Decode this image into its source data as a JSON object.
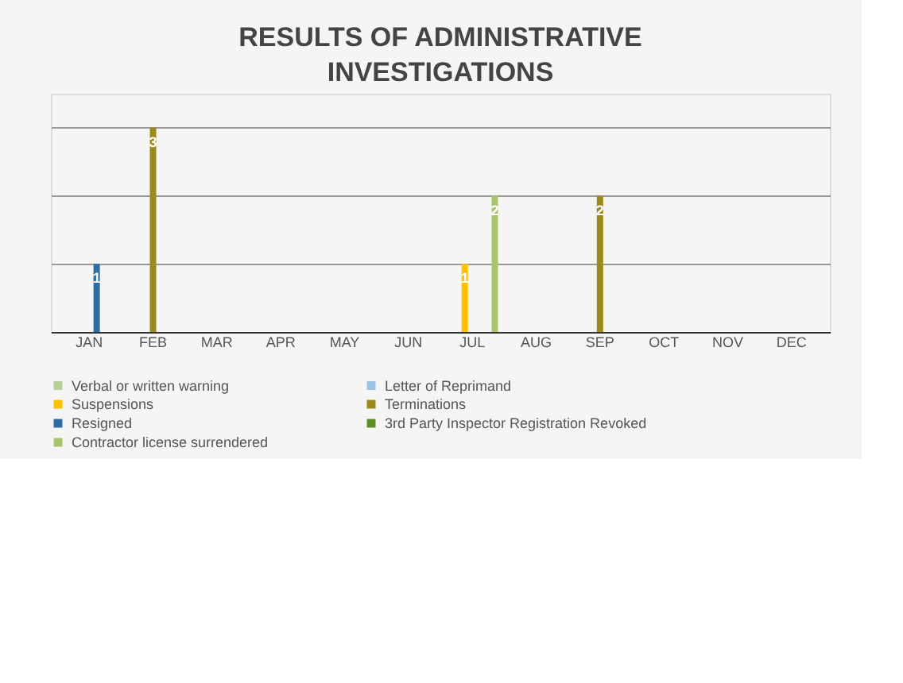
{
  "chart_data": {
    "type": "bar",
    "title": "RESULTS OF ADMINISTRATIVE INVESTIGATIONS",
    "categories": [
      "JAN",
      "FEB",
      "MAR",
      "APR",
      "MAY",
      "JUN",
      "JUL",
      "AUG",
      "SEP",
      "OCT",
      "NOV",
      "DEC"
    ],
    "series": [
      {
        "name": "Verbal or written warning",
        "color": "#b5cf9a",
        "values": [
          null,
          null,
          null,
          null,
          null,
          null,
          null,
          null,
          null,
          null,
          null,
          null
        ]
      },
      {
        "name": "Letter of Reprimand",
        "color": "#9dc3e6",
        "values": [
          null,
          null,
          null,
          null,
          null,
          null,
          null,
          null,
          null,
          null,
          null,
          null
        ]
      },
      {
        "name": "Suspensions",
        "color": "#ffc000",
        "values": [
          null,
          null,
          null,
          null,
          null,
          null,
          1,
          null,
          null,
          null,
          null,
          null
        ]
      },
      {
        "name": "Terminations",
        "color": "#9c8a1c",
        "values": [
          null,
          3,
          null,
          null,
          null,
          null,
          null,
          null,
          2,
          null,
          null,
          null
        ]
      },
      {
        "name": "Resigned",
        "color": "#2e6da4",
        "values": [
          1,
          null,
          null,
          null,
          null,
          null,
          null,
          null,
          null,
          null,
          null,
          null
        ]
      },
      {
        "name": "3rd Party Inspector Registration Revoked",
        "color": "#5f8f2a",
        "values": [
          null,
          null,
          null,
          null,
          null,
          null,
          null,
          null,
          null,
          null,
          null,
          null
        ]
      },
      {
        "name": "Contractor license surrendered",
        "color": "#a9c46c",
        "values": [
          null,
          null,
          null,
          null,
          null,
          null,
          2,
          null,
          null,
          null,
          null,
          null
        ]
      }
    ],
    "ylim": [
      0,
      3.5
    ],
    "yticks": [
      {
        "value": 0,
        "label": null
      },
      {
        "value": 1,
        "label": null
      },
      {
        "value": 2,
        "label": null
      },
      {
        "value": 3,
        "label": null
      }
    ],
    "tick_labels": "x",
    "grid": "y",
    "legend": "bottom",
    "data_labels": true
  }
}
